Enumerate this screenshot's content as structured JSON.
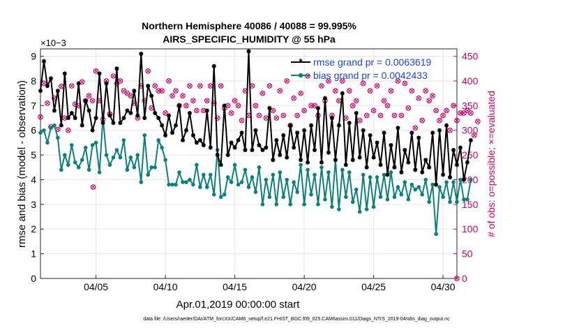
{
  "chart_data": {
    "type": "line",
    "title": "Northern Hemisphere 40086 / 40088 = 99.995%",
    "subtitle": "AIRS_SPECIFIC_HUMIDITY @ 55 hPa",
    "xlabel": "Apr.01,2019 00:00:00 start",
    "ylabel": "rmse and bias (model - observation)",
    "y2label": "# of obs: o=possible; ×=evaluated",
    "yexponent": "×10−3",
    "xlim": [
      1,
      31
    ],
    "ylim": [
      0,
      9.3
    ],
    "y2lim": [
      0,
      465
    ],
    "x_tick_labels": [
      "04/05",
      "04/10",
      "04/15",
      "04/20",
      "04/25",
      "04/30"
    ],
    "x_ticks": [
      5,
      10,
      15,
      20,
      25,
      30
    ],
    "y_tick_labels": [
      "0",
      "1",
      "2",
      "3",
      "4",
      "5",
      "6",
      "7",
      "8",
      "9"
    ],
    "y_ticks": [
      0,
      1,
      2,
      3,
      4,
      5,
      6,
      7,
      8,
      9
    ],
    "y2_tick_labels": [
      "0",
      "50",
      "100",
      "150",
      "200",
      "250",
      "300",
      "350",
      "400",
      "450"
    ],
    "y2_ticks": [
      0,
      50,
      100,
      150,
      200,
      250,
      300,
      350,
      400,
      450
    ],
    "grid": true,
    "legend_position": "top-right",
    "series": [
      {
        "name": "rmse grand pr = 0.0063619",
        "color": "#000000",
        "marker": "asterisk",
        "x_start": 1.0,
        "x_step": 0.25,
        "values": [
          7.6,
          8.8,
          7.8,
          8.1,
          6.8,
          7.6,
          6.2,
          8.3,
          6.5,
          6.7,
          6.5,
          7.9,
          6.2,
          7.2,
          6.8,
          6.0,
          6.5,
          8.3,
          6.3,
          7.9,
          6.6,
          6.3,
          8.5,
          6.3,
          6.5,
          6.8,
          6.7,
          7.6,
          6.6,
          9.1,
          6.5,
          7.8,
          7.4,
          6.7,
          6.5,
          6.2,
          5.8,
          6.6,
          5.9,
          6.2,
          7.0,
          5.6,
          6.0,
          6.7,
          5.8,
          5.5,
          5.6,
          5.4,
          6.8,
          5.3,
          8.6,
          5.0,
          4.6,
          7.0,
          5.0,
          5.5,
          5.3,
          5.6,
          5.9,
          5.2,
          9.2,
          5.2,
          6.0,
          5.4,
          5.2,
          5.3,
          6.9,
          4.8,
          5.6,
          5.0,
          5.8,
          4.9,
          6.2,
          5.3,
          5.9,
          4.8,
          6.0,
          4.7,
          6.2,
          5.2,
          6.9,
          4.7,
          7.3,
          5.1,
          6.5,
          4.8,
          6.2,
          7.5,
          4.6,
          6.3,
          4.8,
          6.7,
          4.9,
          6.0,
          4.5,
          5.8,
          4.9,
          5.5,
          4.6,
          5.9,
          4.2,
          5.4,
          4.5,
          6.1,
          4.3,
          5.2,
          4.7,
          5.9,
          4.4,
          5.7,
          4.3,
          4.8,
          4.5,
          5.9,
          3.8,
          6.0,
          4.2,
          6.2,
          4.1,
          5.2,
          4.6,
          5.3,
          4.0,
          4.7,
          5.6
        ]
      },
      {
        "name": "bias grand pr = 0.0042433",
        "color": "#0d7f7f",
        "marker": "dot",
        "x_start": 1.0,
        "x_step": 0.25,
        "values": [
          5.9,
          6.0,
          5.5,
          6.1,
          6.2,
          5.7,
          4.4,
          5.0,
          4.6,
          5.4,
          4.7,
          4.5,
          4.8,
          5.3,
          4.4,
          5.4,
          5.5,
          4.3,
          6.5,
          5.0,
          4.6,
          4.9,
          5.2,
          4.9,
          5.6,
          4.4,
          4.9,
          4.5,
          5.0,
          3.9,
          5.8,
          4.2,
          4.5,
          4.5,
          5.6,
          5.3,
          4.8,
          3.8,
          3.8,
          3.8,
          4.3,
          3.9,
          3.9,
          4.0,
          3.8,
          4.6,
          3.7,
          4.2,
          3.7,
          4.2,
          3.4,
          5.2,
          3.3,
          3.4,
          4.1,
          3.9,
          4.6,
          3.8,
          3.9,
          4.4,
          3.7,
          4.1,
          3.5,
          4.5,
          3.0,
          4.0,
          3.3,
          4.2,
          3.0,
          4.3,
          3.3,
          4.0,
          3.0,
          3.9,
          3.5,
          4.6,
          3.0,
          4.4,
          3.4,
          4.2,
          3.0,
          4.5,
          3.2,
          4.3,
          2.9,
          4.8,
          2.8,
          4.4,
          3.3,
          4.3,
          3.1,
          3.6,
          2.7,
          4.2,
          2.8,
          4.1,
          2.9,
          4.1,
          3.3,
          4.2,
          3.2,
          4.3,
          3.3,
          3.7,
          3.4,
          3.9,
          3.2,
          3.8,
          3.6,
          3.7,
          3.4,
          4.0,
          3.1,
          3.8,
          1.8,
          3.7,
          3.3,
          3.9,
          3.1,
          3.9,
          3.1,
          4.0,
          3.2,
          3.2,
          4.0
        ]
      },
      {
        "name": "possible",
        "color": "#cc0066",
        "marker": "circle",
        "axis": "right",
        "x_start": 1.0,
        "x_step": 0.25,
        "values": [
          327,
          395,
          355,
          307,
          365,
          302,
          389,
          325,
          300,
          390,
          353,
          350,
          398,
          360,
          370,
          360,
          420,
          360,
          322,
          400,
          333,
          410,
          395,
          400,
          380,
          375,
          370,
          355,
          325,
          390,
          360,
          420,
          345,
          390,
          380,
          380,
          335,
          400,
          370,
          380,
          350,
          370,
          350,
          390,
          360,
          340,
          390,
          340,
          360,
          390,
          355,
          325,
          390,
          345,
          350,
          335,
          360,
          350,
          320,
          380,
          330,
          390,
          350,
          330,
          375,
          325,
          390,
          340,
          325,
          380,
          330,
          400,
          310,
          365,
          330,
          375,
          340,
          410,
          350,
          350,
          330,
          390,
          360,
          400,
          330,
          380,
          360,
          400,
          325,
          380,
          350,
          360,
          320,
          395,
          330,
          380,
          340,
          390,
          330,
          360,
          350,
          380,
          330,
          400,
          330,
          395,
          345,
          380,
          305,
          365,
          320,
          380,
          360,
          370,
          340,
          320,
          330,
          340,
          300,
          350,
          320,
          335,
          335,
          340,
          335,
          290,
          318
        ]
      },
      {
        "name": "evaluated",
        "color": "#cc0066",
        "marker": "x",
        "axis": "right",
        "x_start": 1.0,
        "x_step": 0.25,
        "values": [
          327,
          395,
          355,
          307,
          365,
          302,
          389,
          325,
          300,
          390,
          353,
          350,
          398,
          360,
          370,
          360,
          420,
          360,
          322,
          400,
          333,
          410,
          395,
          400,
          380,
          375,
          370,
          355,
          325,
          390,
          360,
          420,
          345,
          390,
          380,
          380,
          335,
          400,
          370,
          380,
          350,
          370,
          350,
          390,
          360,
          340,
          390,
          340,
          360,
          390,
          355,
          325,
          390,
          345,
          350,
          335,
          360,
          350,
          320,
          380,
          330,
          390,
          350,
          330,
          375,
          325,
          390,
          340,
          325,
          380,
          330,
          400,
          310,
          365,
          330,
          375,
          340,
          410,
          350,
          350,
          330,
          390,
          360,
          400,
          330,
          380,
          360,
          400,
          325,
          380,
          350,
          360,
          320,
          395,
          330,
          380,
          340,
          390,
          330,
          360,
          350,
          380,
          330,
          400,
          330,
          395,
          345,
          380,
          305,
          365,
          320,
          380,
          360,
          370,
          340,
          320,
          330,
          340,
          300,
          350,
          320,
          335,
          335,
          340,
          335,
          290,
          318
        ]
      }
    ],
    "outliers": [
      {
        "name": "possible-outlier",
        "x": 4.8,
        "value": 185
      },
      {
        "name": "zero-count",
        "x": 31.0,
        "value": 0
      }
    ]
  },
  "footer": "data file: /Users/raeder/DAI/ATM_forcXX/CAM6_setup/f.e21.FHIST_BGC.f09_025.CAM6assim.011/Diags_NTrS_2019-04/obs_diag_output.nc"
}
